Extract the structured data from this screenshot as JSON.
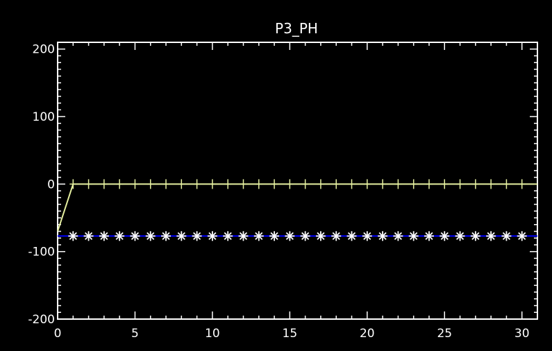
{
  "chart_data": {
    "type": "line",
    "title": "P3_PH",
    "xlabel": "",
    "ylabel": "",
    "xlim": [
      0,
      31
    ],
    "ylim": [
      -200,
      210
    ],
    "x_ticks": [
      0,
      5,
      10,
      15,
      20,
      25,
      30
    ],
    "x_tick_labels": [
      "0",
      "5",
      "10",
      "15",
      "20",
      "25",
      "30"
    ],
    "y_ticks": [
      -200,
      -100,
      0,
      100,
      200
    ],
    "y_tick_labels": [
      "-200",
      "-100",
      "0",
      "100",
      "200"
    ],
    "grid": false,
    "legend": "none",
    "series": [
      {
        "color": "#e6f0a0",
        "marker": "plus",
        "x": [
          0,
          1,
          2,
          3,
          4,
          5,
          6,
          7,
          8,
          9,
          10,
          11,
          12,
          13,
          14,
          15,
          16,
          17,
          18,
          19,
          20,
          21,
          22,
          23,
          24,
          25,
          26,
          27,
          28,
          29,
          30,
          31
        ],
        "values": [
          -70,
          0,
          0,
          0,
          0,
          0,
          0,
          0,
          0,
          0,
          0,
          0,
          0,
          0,
          0,
          0,
          0,
          0,
          0,
          0,
          0,
          0,
          0,
          0,
          0,
          0,
          0,
          0,
          0,
          0,
          0,
          0
        ]
      },
      {
        "color": "#0000ff",
        "marker_color": "#ffffff",
        "marker": "asterisk",
        "x": [
          0,
          1,
          2,
          3,
          4,
          5,
          6,
          7,
          8,
          9,
          10,
          11,
          12,
          13,
          14,
          15,
          16,
          17,
          18,
          19,
          20,
          21,
          22,
          23,
          24,
          25,
          26,
          27,
          28,
          29,
          30,
          31
        ],
        "values": [
          -77,
          -77,
          -77,
          -77,
          -77,
          -77,
          -77,
          -77,
          -77,
          -77,
          -77,
          -77,
          -77,
          -77,
          -77,
          -77,
          -77,
          -77,
          -77,
          -77,
          -77,
          -77,
          -77,
          -77,
          -77,
          -77,
          -77,
          -77,
          -77,
          -77,
          -77,
          -77
        ]
      }
    ]
  }
}
